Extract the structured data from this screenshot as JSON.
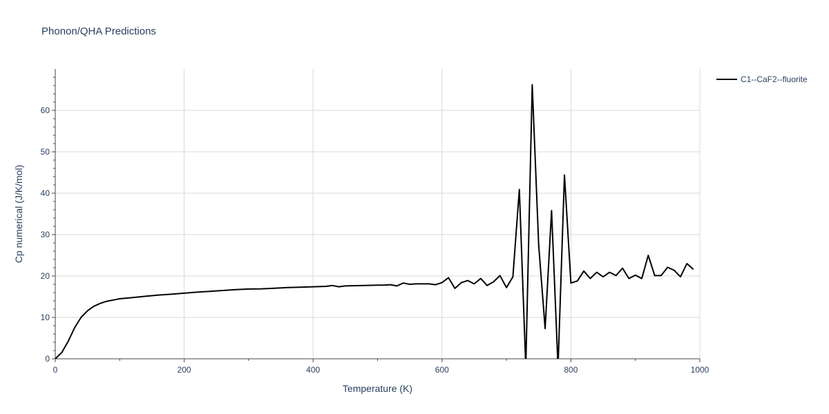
{
  "chart_data": {
    "type": "line",
    "title": "Phonon/QHA Predictions",
    "xlabel": "Temperature (K)",
    "ylabel": "Cp numerical (J/K/mol)",
    "xlim": [
      0,
      1000
    ],
    "ylim": [
      0,
      70
    ],
    "x_ticks": [
      0,
      200,
      400,
      600,
      800,
      1000
    ],
    "y_ticks": [
      0,
      10,
      20,
      30,
      40,
      50,
      60
    ],
    "grid": true,
    "legend_position": "top-right",
    "series": [
      {
        "name": "C1--CaF2--fluorite",
        "color": "#000000",
        "x": [
          0,
          10,
          20,
          30,
          40,
          50,
          60,
          70,
          80,
          90,
          100,
          120,
          140,
          160,
          180,
          200,
          220,
          240,
          260,
          280,
          300,
          320,
          340,
          360,
          380,
          400,
          420,
          430,
          440,
          450,
          460,
          480,
          500,
          510,
          520,
          530,
          540,
          550,
          560,
          570,
          580,
          590,
          600,
          610,
          620,
          630,
          640,
          650,
          660,
          670,
          680,
          690,
          700,
          710,
          720,
          730,
          740,
          750,
          760,
          770,
          780,
          790,
          800,
          810,
          820,
          830,
          840,
          850,
          860,
          870,
          880,
          890,
          900,
          910,
          920,
          930,
          940,
          950,
          960,
          970,
          980,
          990
        ],
        "y": [
          0,
          1.5,
          4.2,
          7.5,
          10.0,
          11.6,
          12.7,
          13.4,
          13.9,
          14.2,
          14.5,
          14.8,
          15.1,
          15.4,
          15.6,
          15.85,
          16.1,
          16.3,
          16.5,
          16.7,
          16.85,
          16.9,
          17.05,
          17.2,
          17.3,
          17.4,
          17.5,
          17.7,
          17.4,
          17.6,
          17.65,
          17.7,
          17.8,
          17.8,
          17.9,
          17.6,
          18.3,
          18.0,
          18.1,
          18.1,
          18.1,
          17.9,
          18.4,
          19.6,
          17.0,
          18.4,
          18.9,
          18.1,
          19.4,
          17.7,
          18.6,
          20.1,
          17.2,
          19.8,
          40.9,
          -2,
          66.2,
          27.5,
          7.3,
          35.8,
          -2,
          44.4,
          18.3,
          18.8,
          21.2,
          19.4,
          20.9,
          19.8,
          20.9,
          20.1,
          21.9,
          19.4,
          20.2,
          19.4,
          25.0,
          20.1,
          20.1,
          22.1,
          21.4,
          19.8,
          23.0,
          21.6
        ]
      }
    ]
  }
}
